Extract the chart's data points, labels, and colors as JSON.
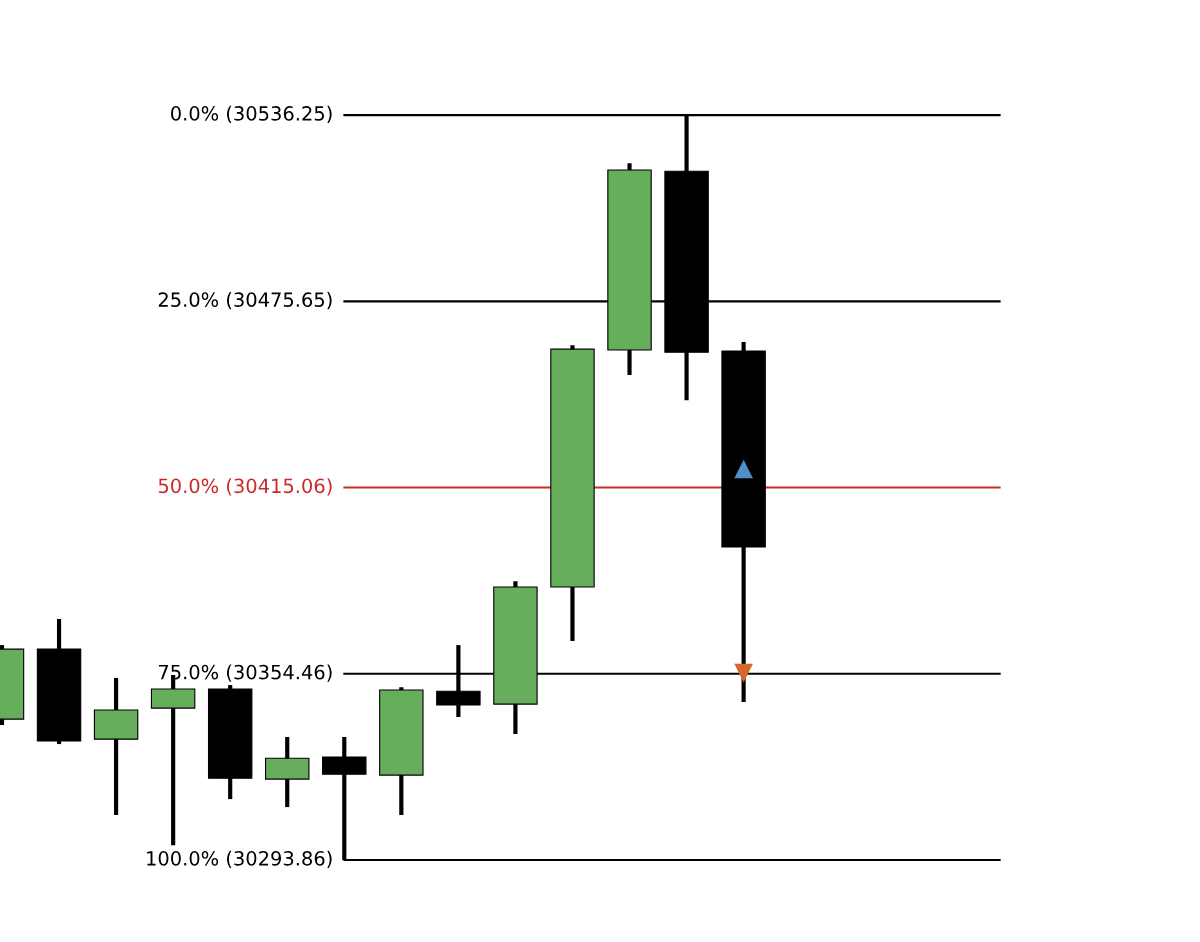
{
  "chart_data": {
    "type": "candlestick",
    "categories": [
      null,
      null,
      null,
      null,
      null,
      null,
      null,
      null,
      null,
      null,
      null,
      null,
      null,
      null
    ],
    "ohlc": [
      [
        30339.7,
        30363.8,
        30337.8,
        30362.5
      ],
      [
        30362.5,
        30372.3,
        30331.6,
        30332.6
      ],
      [
        30333.2,
        30353.1,
        30308.5,
        30342.7
      ],
      [
        30343.3,
        30354.1,
        30298.7,
        30349.5
      ],
      [
        30349.5,
        30350.8,
        30313.7,
        30320.5
      ],
      [
        30320.2,
        30333.9,
        30311.1,
        30327.0
      ],
      [
        30327.4,
        30333.9,
        30293.9,
        30321.8
      ],
      [
        30321.5,
        30350.1,
        30308.5,
        30349.2
      ],
      [
        30348.8,
        30363.8,
        30340.4,
        30344.3
      ],
      [
        30344.6,
        30384.6,
        30334.9,
        30382.7
      ],
      [
        30382.7,
        30461.4,
        30365.1,
        30460.1
      ],
      [
        30459.8,
        30520.6,
        30451.7,
        30518.4
      ],
      [
        30518.0,
        30536.25,
        30443.5,
        30459.1
      ],
      [
        30459.5,
        30462.4,
        30345.3,
        30395.7
      ]
    ],
    "colors": [
      "#66ad5c",
      "#000000",
      "#66ad5c",
      "#66ad5c",
      "#000000",
      "#66ad5c",
      "#000000",
      "#66ad5c",
      "#000000",
      "#66ad5c",
      "#66ad5c",
      "#66ad5c",
      "#000000",
      "#000000"
    ],
    "series": [
      {
        "type": "scatter",
        "marker": "triangle",
        "color": "#4f8fc7",
        "values": [
          null,
          null,
          null,
          null,
          null,
          null,
          null,
          null,
          null,
          null,
          null,
          null,
          null,
          30421.1
        ]
      },
      {
        "type": "scatter",
        "marker": "triangle_down",
        "color": "#d2692a",
        "values": [
          null,
          null,
          null,
          null,
          null,
          null,
          null,
          null,
          null,
          null,
          null,
          null,
          null,
          30354.7
        ]
      }
    ],
    "ylim": [
      30267.2,
      30573.7
    ],
    "ref_lines": [
      {
        "axis": "y",
        "value": 30536.25,
        "label": "0.0% (30536.25)",
        "color": "#000000"
      },
      {
        "axis": "y",
        "value": 30475.65,
        "label": "25.0% (30475.65)",
        "color": "#000000"
      },
      {
        "axis": "y",
        "value": 30415.06,
        "label": "50.0% (30415.06)",
        "color": "#cc2a2a"
      },
      {
        "axis": "y",
        "value": 30354.46,
        "label": "75.0% (30354.46)",
        "color": "#000000"
      },
      {
        "axis": "y",
        "value": 30293.86,
        "label": "100.0% (30293.86)",
        "color": "#000000"
      }
    ]
  }
}
